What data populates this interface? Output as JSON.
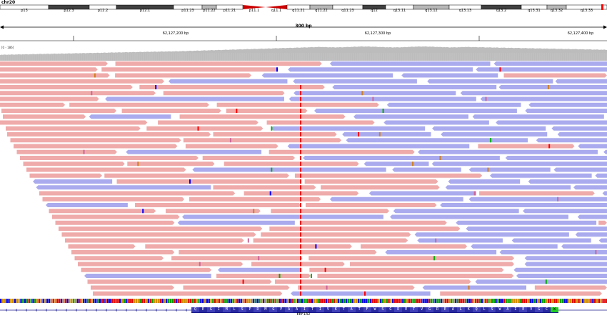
{
  "chromosome": "chr20",
  "ideogram_bands": [
    {
      "name": "p13",
      "stain": "white"
    },
    {
      "name": "p12.3",
      "stain": "dark"
    },
    {
      "name": "p12.2",
      "stain": "white"
    },
    {
      "name": "p12.1",
      "stain": "dark"
    },
    {
      "name": "p11.23",
      "stain": "white"
    },
    {
      "name": "p11.22",
      "stain": "gray"
    },
    {
      "name": "p11.21",
      "stain": "white"
    },
    {
      "name": "p11.1",
      "stain": "centromere"
    },
    {
      "name": "q11.1",
      "stain": "centromere"
    },
    {
      "name": "q11.21",
      "stain": "white"
    },
    {
      "name": "q11.22",
      "stain": "gray"
    },
    {
      "name": "q11.23",
      "stain": "white"
    },
    {
      "name": "q12",
      "stain": "dark"
    },
    {
      "name": "q13.11",
      "stain": "white"
    },
    {
      "name": "q13.12",
      "stain": "gray"
    },
    {
      "name": "q13.13",
      "stain": "white"
    },
    {
      "name": "q13.2",
      "stain": "dark"
    },
    {
      "name": "q13.31",
      "stain": "white"
    },
    {
      "name": "q13.32",
      "stain": "gray"
    },
    {
      "name": "q13.33",
      "stain": "white"
    }
  ],
  "ruler": {
    "span_label": "300 bp",
    "ticks": [
      "62,127,200 bp",
      "62,127,300 bp",
      "62,127,400 bp"
    ]
  },
  "coverage": {
    "range_label": "[0 - 186]"
  },
  "gene": {
    "name": "EEF1A2",
    "amino_acids": [
      "Q",
      "E",
      "G",
      "I",
      "M",
      "L",
      "S",
      "P",
      "D",
      "M",
      "G",
      "P",
      "A",
      "A",
      "I",
      "T",
      "I",
      "V",
      "K",
      "T",
      "A",
      "T",
      "F",
      "W",
      "S",
      "G",
      "D",
      "E",
      "T",
      "V",
      "G",
      "R",
      "E",
      "A",
      "L",
      "K",
      "Q",
      "L",
      "S",
      "W",
      "A",
      "I",
      "E",
      "V",
      "G",
      "C",
      "W"
    ]
  },
  "colors": {
    "forward_read": "#efaaaa",
    "reverse_read": "#aaaaee",
    "coverage": "#bcbcbc",
    "centromere": "#cc0000",
    "gene_track": "#1a1a8c"
  }
}
